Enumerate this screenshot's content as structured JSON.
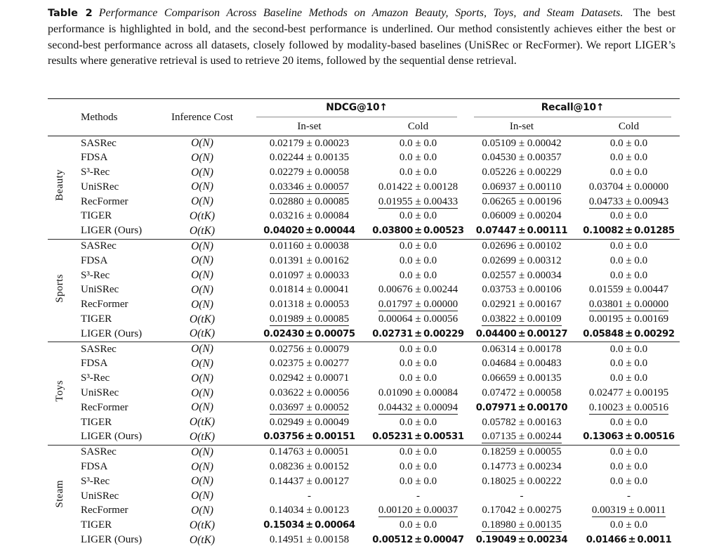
{
  "colors": {
    "background": "#ffffff",
    "text": "#111111",
    "rule_dark": "#1c1c1c",
    "rule_gray": "#8d8d8d"
  },
  "caption": {
    "tag": "Table 2",
    "title": "Performance Comparison Across Baseline Methods on Amazon Beauty, Sports, Toys, and Steam Datasets.",
    "body": "The best performance is highlighted in bold, and the second-best performance is underlined. Our method consistently achieves either the best or second-best performance across all datasets, closely followed by modality-based baselines (UniSRec or RecFormer). We report LIGER’s results where generative retrieval is used to retrieve 20 items, followed by the sequential dense retrieval."
  },
  "table": {
    "headers": {
      "methods": "Methods",
      "inference_cost": "Inference Cost",
      "ndcg": "NDCG@10↑",
      "recall": "Recall@10↑",
      "in_set": "In-set",
      "cold": "Cold"
    },
    "groups": [
      {
        "dataset": "Beauty",
        "rows": [
          {
            "method": "SASRec",
            "cost": "O(N)",
            "cells": [
              {
                "v": "0.02179 ± 0.00023",
                "s": "plain"
              },
              {
                "v": "0.0 ± 0.0",
                "s": "plain"
              },
              {
                "v": "0.05109 ± 0.00042",
                "s": "plain"
              },
              {
                "v": "0.0 ± 0.0",
                "s": "plain"
              }
            ]
          },
          {
            "method": "FDSA",
            "cost": "O(N)",
            "cells": [
              {
                "v": "0.02244 ± 0.00135",
                "s": "plain"
              },
              {
                "v": "0.0 ± 0.0",
                "s": "plain"
              },
              {
                "v": "0.04530 ± 0.00357",
                "s": "plain"
              },
              {
                "v": "0.0 ± 0.0",
                "s": "plain"
              }
            ]
          },
          {
            "method": "S³-Rec",
            "cost": "O(N)",
            "cells": [
              {
                "v": "0.02279 ± 0.00058",
                "s": "plain"
              },
              {
                "v": "0.0 ± 0.0",
                "s": "plain"
              },
              {
                "v": "0.05226 ± 0.00229",
                "s": "plain"
              },
              {
                "v": "0.0 ± 0.0",
                "s": "plain"
              }
            ]
          },
          {
            "method": "UniSRec",
            "cost": "O(N)",
            "cells": [
              {
                "v": "0.03346 ± 0.00057",
                "s": "underline"
              },
              {
                "v": "0.01422 ± 0.00128",
                "s": "plain"
              },
              {
                "v": "0.06937 ± 0.00110",
                "s": "underline"
              },
              {
                "v": "0.03704 ± 0.00000",
                "s": "plain"
              }
            ]
          },
          {
            "method": "RecFormer",
            "cost": "O(N)",
            "cells": [
              {
                "v": "0.02880 ± 0.00085",
                "s": "plain"
              },
              {
                "v": "0.01955 ± 0.00433",
                "s": "underline"
              },
              {
                "v": "0.06265 ± 0.00196",
                "s": "plain"
              },
              {
                "v": "0.04733 ± 0.00943",
                "s": "underline"
              }
            ]
          },
          {
            "method": "TIGER",
            "cost": "O(tK)",
            "cells": [
              {
                "v": "0.03216 ± 0.00084",
                "s": "plain"
              },
              {
                "v": "0.0 ± 0.0",
                "s": "plain"
              },
              {
                "v": "0.06009 ± 0.00204",
                "s": "plain"
              },
              {
                "v": "0.0 ± 0.0",
                "s": "plain"
              }
            ]
          },
          {
            "method": "LIGER (Ours)",
            "cost": "O(tK)",
            "cells": [
              {
                "v": "0.04020 ± 0.00044",
                "s": "bold"
              },
              {
                "v": "0.03800 ± 0.00523",
                "s": "bold"
              },
              {
                "v": "0.07447 ± 0.00111",
                "s": "bold"
              },
              {
                "v": "0.10082 ± 0.01285",
                "s": "bold"
              }
            ]
          }
        ]
      },
      {
        "dataset": "Sports",
        "rows": [
          {
            "method": "SASRec",
            "cost": "O(N)",
            "cells": [
              {
                "v": "0.01160 ± 0.00038",
                "s": "plain"
              },
              {
                "v": "0.0 ± 0.0",
                "s": "plain"
              },
              {
                "v": "0.02696 ± 0.00102",
                "s": "plain"
              },
              {
                "v": "0.0 ± 0.0",
                "s": "plain"
              }
            ]
          },
          {
            "method": "FDSA",
            "cost": "O(N)",
            "cells": [
              {
                "v": "0.01391 ± 0.00162",
                "s": "plain"
              },
              {
                "v": "0.0 ± 0.0",
                "s": "plain"
              },
              {
                "v": "0.02699 ± 0.00312",
                "s": "plain"
              },
              {
                "v": "0.0 ± 0.0",
                "s": "plain"
              }
            ]
          },
          {
            "method": "S³-Rec",
            "cost": "O(N)",
            "cells": [
              {
                "v": "0.01097 ± 0.00033",
                "s": "plain"
              },
              {
                "v": "0.0 ± 0.0",
                "s": "plain"
              },
              {
                "v": "0.02557 ± 0.00034",
                "s": "plain"
              },
              {
                "v": "0.0 ± 0.0",
                "s": "plain"
              }
            ]
          },
          {
            "method": "UniSRec",
            "cost": "O(N)",
            "cells": [
              {
                "v": "0.01814 ± 0.00041",
                "s": "plain"
              },
              {
                "v": "0.00676 ± 0.00244",
                "s": "plain"
              },
              {
                "v": "0.03753 ± 0.00106",
                "s": "plain"
              },
              {
                "v": "0.01559 ± 0.00447",
                "s": "plain"
              }
            ]
          },
          {
            "method": "RecFormer",
            "cost": "O(N)",
            "cells": [
              {
                "v": "0.01318 ± 0.00053",
                "s": "plain"
              },
              {
                "v": "0.01797 ± 0.00000",
                "s": "underline"
              },
              {
                "v": "0.02921 ± 0.00167",
                "s": "plain"
              },
              {
                "v": "0.03801 ± 0.00000",
                "s": "underline"
              }
            ]
          },
          {
            "method": "TIGER",
            "cost": "O(tK)",
            "cells": [
              {
                "v": "0.01989 ± 0.00085",
                "s": "underline"
              },
              {
                "v": "0.00064 ± 0.00056",
                "s": "plain"
              },
              {
                "v": "0.03822 ± 0.00109",
                "s": "underline"
              },
              {
                "v": "0.00195 ± 0.00169",
                "s": "plain"
              }
            ]
          },
          {
            "method": "LIGER (Ours)",
            "cost": "O(tK)",
            "cells": [
              {
                "v": "0.02430 ± 0.00075",
                "s": "bold"
              },
              {
                "v": "0.02731 ± 0.00229",
                "s": "bold"
              },
              {
                "v": "0.04400 ± 0.00127",
                "s": "bold"
              },
              {
                "v": "0.05848 ± 0.00292",
                "s": "bold"
              }
            ]
          }
        ]
      },
      {
        "dataset": "Toys",
        "rows": [
          {
            "method": "SASRec",
            "cost": "O(N)",
            "cells": [
              {
                "v": "0.02756 ± 0.00079",
                "s": "plain"
              },
              {
                "v": "0.0 ± 0.0",
                "s": "plain"
              },
              {
                "v": "0.06314 ± 0.00178",
                "s": "plain"
              },
              {
                "v": "0.0 ± 0.0",
                "s": "plain"
              }
            ]
          },
          {
            "method": "FDSA",
            "cost": "O(N)",
            "cells": [
              {
                "v": "0.02375 ± 0.00277",
                "s": "plain"
              },
              {
                "v": "0.0 ± 0.0",
                "s": "plain"
              },
              {
                "v": "0.04684 ± 0.00483",
                "s": "plain"
              },
              {
                "v": "0.0 ± 0.0",
                "s": "plain"
              }
            ]
          },
          {
            "method": "S³-Rec",
            "cost": "O(N)",
            "cells": [
              {
                "v": "0.02942 ± 0.00071",
                "s": "plain"
              },
              {
                "v": "0.0 ± 0.0",
                "s": "plain"
              },
              {
                "v": "0.06659 ± 0.00135",
                "s": "plain"
              },
              {
                "v": "0.0 ± 0.0",
                "s": "plain"
              }
            ]
          },
          {
            "method": "UniSRec",
            "cost": "O(N)",
            "cells": [
              {
                "v": "0.03622 ± 0.00056",
                "s": "plain"
              },
              {
                "v": "0.01090 ± 0.00084",
                "s": "plain"
              },
              {
                "v": "0.07472 ± 0.00058",
                "s": "plain"
              },
              {
                "v": "0.02477 ± 0.00195",
                "s": "plain"
              }
            ]
          },
          {
            "method": "RecFormer",
            "cost": "O(N)",
            "cells": [
              {
                "v": "0.03697 ± 0.00052",
                "s": "underline"
              },
              {
                "v": "0.04432 ± 0.00094",
                "s": "underline"
              },
              {
                "v": "0.07971 ± 0.00170",
                "s": "bold"
              },
              {
                "v": "0.10023 ± 0.00516",
                "s": "underline"
              }
            ]
          },
          {
            "method": "TIGER",
            "cost": "O(tK)",
            "cells": [
              {
                "v": "0.02949 ± 0.00049",
                "s": "plain"
              },
              {
                "v": "0.0 ± 0.0",
                "s": "plain"
              },
              {
                "v": "0.05782 ± 0.00163",
                "s": "plain"
              },
              {
                "v": "0.0 ± 0.0",
                "s": "plain"
              }
            ]
          },
          {
            "method": "LIGER (Ours)",
            "cost": "O(tK)",
            "cells": [
              {
                "v": "0.03756 ± 0.00151",
                "s": "bold"
              },
              {
                "v": "0.05231 ± 0.00531",
                "s": "bold"
              },
              {
                "v": "0.07135 ± 0.00244",
                "s": "underline"
              },
              {
                "v": "0.13063 ± 0.00516",
                "s": "bold"
              }
            ]
          }
        ]
      },
      {
        "dataset": "Steam",
        "rows": [
          {
            "method": "SASRec",
            "cost": "O(N)",
            "cells": [
              {
                "v": "0.14763 ± 0.00051",
                "s": "plain"
              },
              {
                "v": "0.0 ± 0.0",
                "s": "plain"
              },
              {
                "v": "0.18259 ± 0.00055",
                "s": "plain"
              },
              {
                "v": "0.0 ± 0.0",
                "s": "plain"
              }
            ]
          },
          {
            "method": "FDSA",
            "cost": "O(N)",
            "cells": [
              {
                "v": "0.08236 ± 0.00152",
                "s": "plain"
              },
              {
                "v": "0.0 ± 0.0",
                "s": "plain"
              },
              {
                "v": "0.14773 ± 0.00234",
                "s": "plain"
              },
              {
                "v": "0.0 ± 0.0",
                "s": "plain"
              }
            ]
          },
          {
            "method": "S³-Rec",
            "cost": "O(N)",
            "cells": [
              {
                "v": "0.14437 ± 0.00127",
                "s": "plain"
              },
              {
                "v": "0.0 ± 0.0",
                "s": "plain"
              },
              {
                "v": "0.18025 ± 0.00222",
                "s": "plain"
              },
              {
                "v": "0.0 ± 0.0",
                "s": "plain"
              }
            ]
          },
          {
            "method": "UniSRec",
            "cost": "O(N)",
            "cells": [
              {
                "v": "-",
                "s": "plain"
              },
              {
                "v": "-",
                "s": "plain"
              },
              {
                "v": "-",
                "s": "plain"
              },
              {
                "v": "-",
                "s": "plain"
              }
            ]
          },
          {
            "method": "RecFormer",
            "cost": "O(N)",
            "cells": [
              {
                "v": "0.14034 ± 0.00123",
                "s": "plain"
              },
              {
                "v": "0.00120 ± 0.00037",
                "s": "underline"
              },
              {
                "v": "0.17042 ± 0.00275",
                "s": "plain"
              },
              {
                "v": "0.00319 ± 0.0011",
                "s": "underline"
              }
            ]
          },
          {
            "method": "TIGER",
            "cost": "O(tK)",
            "cells": [
              {
                "v": "0.15034 ± 0.00064",
                "s": "bold"
              },
              {
                "v": "0.0 ± 0.0",
                "s": "plain"
              },
              {
                "v": "0.18980 ± 0.00135",
                "s": "underline"
              },
              {
                "v": "0.0 ± 0.0",
                "s": "plain"
              }
            ]
          },
          {
            "method": "LIGER (Ours)",
            "cost": "O(tK)",
            "cells": [
              {
                "v": "0.14951 ± 0.00158",
                "s": "underline"
              },
              {
                "v": "0.00512 ± 0.00047",
                "s": "bold"
              },
              {
                "v": "0.19049 ± 0.00234",
                "s": "bold"
              },
              {
                "v": "0.01466 ± 0.0011",
                "s": "bold"
              }
            ]
          }
        ]
      }
    ]
  }
}
